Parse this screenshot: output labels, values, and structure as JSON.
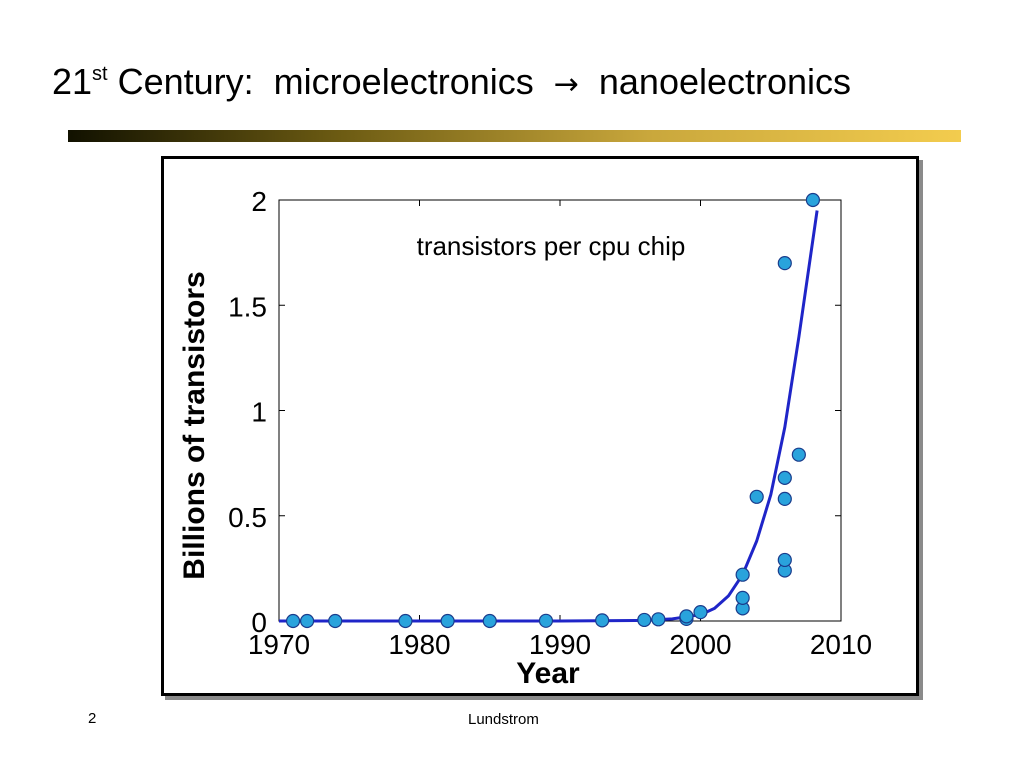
{
  "slide": {
    "title_pre": "21",
    "title_sup": "st",
    "title_mid": " Century:  microelectronics ",
    "title_arrow": "→",
    "title_post": " nanoelectronics",
    "page_number": "2",
    "footer": "Lundstrom",
    "rule_colors": [
      "#111100",
      "#c9a73c",
      "#f3cc4e"
    ]
  },
  "chart_data": {
    "type": "scatter",
    "annotation": "transistors per cpu chip",
    "xlabel": "Year",
    "ylabel": "Billions of transistors",
    "xlim": [
      1970,
      2010
    ],
    "ylim": [
      0,
      2
    ],
    "x_ticks": [
      "1970",
      "1980",
      "1990",
      "2000",
      "2010"
    ],
    "y_ticks": [
      "0",
      "0.5",
      "1",
      "1.5",
      "2"
    ],
    "grid": false,
    "series": [
      {
        "type": "scatter",
        "marker_color": "#29a3dc",
        "points": [
          [
            1971,
            0.0
          ],
          [
            1972,
            0.0
          ],
          [
            1974,
            0.0
          ],
          [
            1979,
            0.0
          ],
          [
            1982,
            0.0
          ],
          [
            1985,
            0.0
          ],
          [
            1989,
            0.001
          ],
          [
            1993,
            0.003
          ],
          [
            1996,
            0.005
          ],
          [
            1997,
            0.008
          ],
          [
            1999,
            0.01
          ],
          [
            1999,
            0.022
          ],
          [
            2000,
            0.042
          ],
          [
            2003,
            0.06
          ],
          [
            2003,
            0.11
          ],
          [
            2003,
            0.22
          ],
          [
            2004,
            0.59
          ],
          [
            2006,
            0.24
          ],
          [
            2006,
            0.29
          ],
          [
            2006,
            0.58
          ],
          [
            2006,
            0.68
          ],
          [
            2006,
            1.7
          ],
          [
            2007,
            0.79
          ],
          [
            2008,
            2.0
          ]
        ]
      },
      {
        "type": "line",
        "color": "#1f25c8",
        "points": [
          [
            1970,
            0.0
          ],
          [
            1990,
            0.0
          ],
          [
            1996,
            0.003
          ],
          [
            1998,
            0.01
          ],
          [
            2000,
            0.03
          ],
          [
            2001,
            0.06
          ],
          [
            2002,
            0.12
          ],
          [
            2003,
            0.22
          ],
          [
            2004,
            0.38
          ],
          [
            2005,
            0.6
          ],
          [
            2006,
            0.92
          ],
          [
            2007,
            1.35
          ],
          [
            2008.3,
            1.95
          ]
        ]
      }
    ]
  }
}
